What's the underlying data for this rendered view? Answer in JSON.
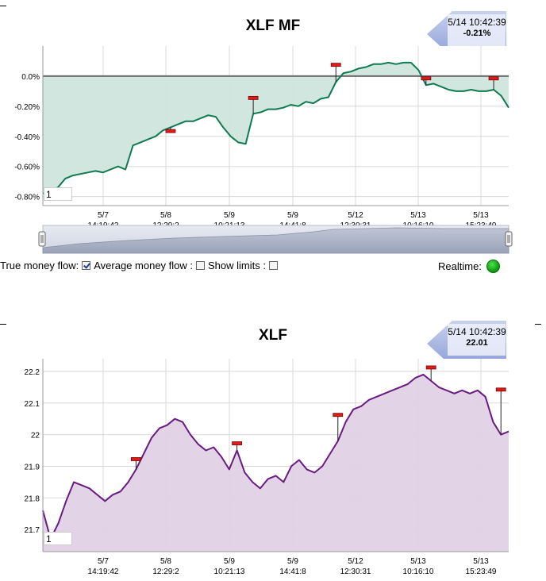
{
  "chart_data": [
    {
      "type": "area",
      "title": "XLF MF",
      "callout": {
        "timestamp": "5/14 10:42:39",
        "value": "-0.21%"
      },
      "ylim": [
        -0.86,
        0.2
      ],
      "y_ticks": [
        0.0,
        -0.2,
        -0.4,
        -0.6,
        -0.8
      ],
      "y_tick_labels": [
        "0.0%",
        "-0.20%",
        "-0.40%",
        "-0.60%",
        "-0.80%"
      ],
      "x_ticks": [
        {
          "date": "5/7",
          "time": "14:19:42"
        },
        {
          "date": "5/8",
          "time": "12:29:2"
        },
        {
          "date": "5/9",
          "time": "10:21:13"
        },
        {
          "date": "5/9",
          "time": "14:41:8"
        },
        {
          "date": "5/12",
          "time": "12:30:31"
        },
        {
          "date": "5/13",
          "time": "10:16:10"
        },
        {
          "date": "5/13",
          "time": "15:23:49"
        }
      ],
      "baseline": 0.0,
      "input_value": "1",
      "series": [
        {
          "name": "Average money flow",
          "color": "#0f7a50",
          "fill": "#cfe5dd",
          "values": [
            -0.78,
            -0.76,
            -0.74,
            -0.68,
            -0.66,
            -0.65,
            -0.64,
            -0.63,
            -0.64,
            -0.62,
            -0.6,
            -0.62,
            -0.46,
            -0.44,
            -0.42,
            -0.4,
            -0.36,
            -0.34,
            -0.32,
            -0.3,
            -0.3,
            -0.28,
            -0.26,
            -0.27,
            -0.34,
            -0.4,
            -0.44,
            -0.45,
            -0.25,
            -0.24,
            -0.22,
            -0.22,
            -0.21,
            -0.19,
            -0.2,
            -0.17,
            -0.18,
            -0.15,
            -0.14,
            -0.04,
            0.02,
            0.03,
            0.05,
            0.06,
            0.08,
            0.08,
            0.09,
            0.08,
            0.09,
            0.09,
            0.04,
            -0.06,
            -0.05,
            -0.07,
            -0.09,
            -0.1,
            -0.1,
            -0.09,
            -0.1,
            -0.1,
            -0.09,
            -0.13,
            -0.21
          ]
        }
      ],
      "markers": [
        -0.37,
        -0.15,
        0.07,
        -0.02,
        -0.02
      ]
    },
    {
      "type": "area",
      "title": "XLF",
      "callout": {
        "timestamp": "5/14 10:42:39",
        "value": "22.01"
      },
      "ylim": [
        21.63,
        22.24
      ],
      "y_ticks": [
        22.2,
        22.1,
        22.0,
        21.9,
        21.8,
        21.7
      ],
      "y_tick_labels": [
        "22.2",
        "22.1",
        "22",
        "21.9",
        "21.8",
        "21.7"
      ],
      "x_ticks": [
        {
          "date": "5/7",
          "time": "14:19:42"
        },
        {
          "date": "5/8",
          "time": "12:29:2"
        },
        {
          "date": "5/9",
          "time": "10:21:13"
        },
        {
          "date": "5/9",
          "time": "14:41:8"
        },
        {
          "date": "5/12",
          "time": "12:30:31"
        },
        {
          "date": "5/13",
          "time": "10:16:10"
        },
        {
          "date": "5/13",
          "time": "15:23:49"
        }
      ],
      "input_value": "1",
      "series": [
        {
          "name": "XLF",
          "color": "#6a1b80",
          "fill": "#e0d2e5",
          "values": [
            21.76,
            21.67,
            21.72,
            21.79,
            21.85,
            21.84,
            21.83,
            21.81,
            21.79,
            21.81,
            21.82,
            21.85,
            21.89,
            21.94,
            21.99,
            22.02,
            22.03,
            22.05,
            22.04,
            22.0,
            21.97,
            21.95,
            21.96,
            21.93,
            21.89,
            21.95,
            21.88,
            21.85,
            21.83,
            21.86,
            21.87,
            21.85,
            21.9,
            21.92,
            21.89,
            21.88,
            21.9,
            21.94,
            21.98,
            22.04,
            22.08,
            22.09,
            22.11,
            22.12,
            22.13,
            22.14,
            22.15,
            22.16,
            22.18,
            22.19,
            22.17,
            22.15,
            22.14,
            22.13,
            22.14,
            22.13,
            22.14,
            22.12,
            22.04,
            22.0,
            22.01
          ]
        }
      ],
      "markers": [
        21.92,
        21.97,
        22.06,
        22.21,
        22.14
      ]
    }
  ],
  "navigator": {
    "label": "date-range navigator"
  },
  "controls": {
    "true_money_flow_label": "True money flow:",
    "average_money_flow_label": "Average money flow :",
    "show_limits_label": "Show limits :",
    "realtime_label": "Realtime:"
  }
}
